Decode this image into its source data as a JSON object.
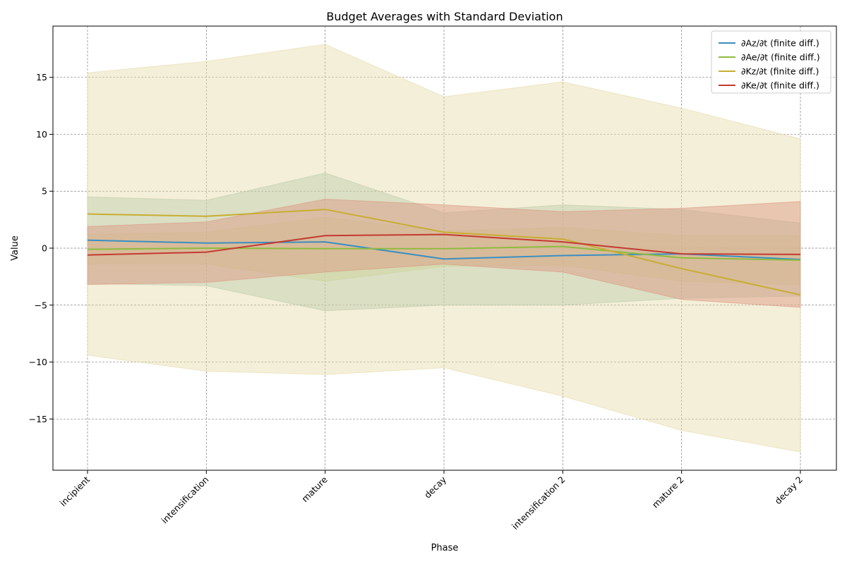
{
  "chart_data": {
    "type": "line",
    "title": "Budget Averages with Standard Deviation",
    "xlabel": "Phase",
    "ylabel": "Value",
    "categories": [
      "incipient",
      "intensification",
      "mature",
      "decay",
      "intensification 2",
      "mature 2",
      "decay 2"
    ],
    "ylim": [
      -19.5,
      19.5
    ],
    "yticks": [
      -15,
      -10,
      -5,
      0,
      5,
      10,
      15
    ],
    "ytick_labels": [
      "−15",
      "−10",
      "−5",
      "0",
      "5",
      "10",
      "15"
    ],
    "grid": true,
    "legend_position": "top-right",
    "series": [
      {
        "name": "∂Az/∂t (finite diff.)",
        "color": "#3a8fc2",
        "band_color": "#9bbfb0",
        "values": [
          0.7,
          0.45,
          0.55,
          -0.95,
          -0.65,
          -0.5,
          -1.0
        ],
        "band_upper": [
          4.5,
          4.2,
          6.6,
          3.1,
          3.8,
          3.4,
          2.2
        ],
        "band_lower": [
          -3.1,
          -3.3,
          -5.5,
          -5.0,
          -5.0,
          -4.4,
          -4.2
        ]
      },
      {
        "name": "∂Ae/∂t (finite diff.)",
        "color": "#8ebc3f",
        "band_color": "#b8cf8c",
        "values": [
          -0.1,
          0.0,
          -0.05,
          -0.05,
          0.15,
          -0.85,
          -1.05
        ],
        "band_upper": [
          1.2,
          1.4,
          2.7,
          1.5,
          1.8,
          1.1,
          1.1
        ],
        "band_lower": [
          -1.4,
          -1.4,
          -2.9,
          -1.6,
          -1.5,
          -2.9,
          -3.2
        ]
      },
      {
        "name": "∂Kz/∂t (finite diff.)",
        "color": "#c7ae32",
        "band_color": "#e6dba8",
        "values": [
          3.0,
          2.8,
          3.4,
          1.4,
          0.8,
          -1.8,
          -4.1
        ],
        "band_upper": [
          15.4,
          16.4,
          17.9,
          13.3,
          14.6,
          12.3,
          9.6
        ],
        "band_lower": [
          -9.4,
          -10.8,
          -11.1,
          -10.5,
          -13.0,
          -16.0,
          -17.9
        ]
      },
      {
        "name": "∂Ke/∂t (finite diff.)",
        "color": "#c43a32",
        "band_color": "#dc9580",
        "values": [
          -0.6,
          -0.35,
          1.1,
          1.2,
          0.55,
          -0.5,
          -0.55
        ],
        "band_upper": [
          1.9,
          2.3,
          4.3,
          3.8,
          3.2,
          3.5,
          4.1
        ],
        "band_lower": [
          -3.2,
          -3.0,
          -2.1,
          -1.4,
          -2.1,
          -4.5,
          -5.2
        ]
      }
    ]
  }
}
